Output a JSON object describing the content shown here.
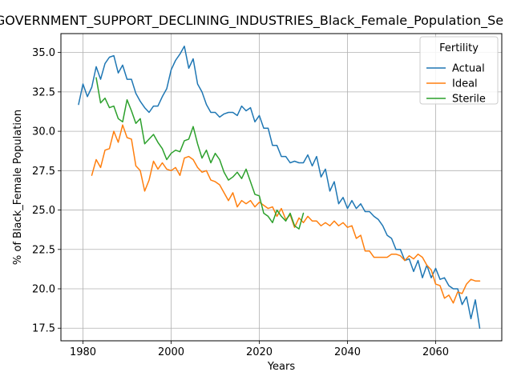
{
  "chart_data": {
    "type": "line",
    "title": "GOVERNMENT_SUPPORT_DECLINING_INDUSTRIES_Black_Female_Population_Se",
    "xlabel": "Years",
    "ylabel": "% of Black_Female Population",
    "xlim": [
      1975,
      2075
    ],
    "ylim": [
      16.7,
      36.2
    ],
    "xticks": [
      1980,
      2000,
      2020,
      2040,
      2060
    ],
    "yticks": [
      17.5,
      20.0,
      22.5,
      25.0,
      27.5,
      30.0,
      32.5,
      35.0
    ],
    "ytick_labels": [
      "17.5",
      "20.0",
      "22.5",
      "25.0",
      "27.5",
      "30.0",
      "32.5",
      "35.0"
    ],
    "grid": true,
    "legend": {
      "title": "Fertility",
      "placement": "upper right"
    },
    "series": [
      {
        "name": "Actual",
        "color": "#1f77b4",
        "x": [
          1979,
          1980,
          1981,
          1982,
          1983,
          1984,
          1985,
          1986,
          1987,
          1988,
          1989,
          1990,
          1991,
          1992,
          1993,
          1994,
          1995,
          1996,
          1997,
          1998,
          1999,
          2000,
          2001,
          2002,
          2003,
          2004,
          2005,
          2006,
          2007,
          2008,
          2009,
          2010,
          2011,
          2012,
          2013,
          2014,
          2015,
          2016,
          2017,
          2018,
          2019,
          2020,
          2021,
          2022,
          2023,
          2024,
          2025,
          2026,
          2027,
          2028,
          2029,
          2030,
          2031,
          2032,
          2033,
          2034,
          2035,
          2036,
          2037,
          2038,
          2039,
          2040,
          2041,
          2042,
          2043,
          2044,
          2045,
          2046,
          2047,
          2048,
          2049,
          2050,
          2051,
          2052,
          2053,
          2054,
          2055,
          2056,
          2057,
          2058,
          2059,
          2060,
          2061,
          2062,
          2063,
          2064,
          2065,
          2066,
          2067,
          2068,
          2069,
          2070
        ],
        "values": [
          31.7,
          33.0,
          32.2,
          32.8,
          34.1,
          33.3,
          34.3,
          34.7,
          34.8,
          33.7,
          34.2,
          33.3,
          33.3,
          32.4,
          31.9,
          31.5,
          31.2,
          31.6,
          31.6,
          32.2,
          32.7,
          33.9,
          34.5,
          34.9,
          35.4,
          34.0,
          34.6,
          33.0,
          32.5,
          31.7,
          31.2,
          31.2,
          30.9,
          31.1,
          31.2,
          31.2,
          31.0,
          31.6,
          31.3,
          31.5,
          30.6,
          31.0,
          30.2,
          30.2,
          29.1,
          29.1,
          28.4,
          28.4,
          28.0,
          28.1,
          28.0,
          28.0,
          28.5,
          27.8,
          28.4,
          27.1,
          27.6,
          26.2,
          26.8,
          25.4,
          25.8,
          25.1,
          25.6,
          25.1,
          25.4,
          24.9,
          24.9,
          24.6,
          24.4,
          24.0,
          23.4,
          23.2,
          22.5,
          22.5,
          21.8,
          21.9,
          21.1,
          21.8,
          20.7,
          21.5,
          20.7,
          21.3,
          20.6,
          20.7,
          20.2,
          20.0,
          20.0,
          19.0,
          19.5,
          18.1,
          19.3,
          17.5
        ]
      },
      {
        "name": "Ideal",
        "color": "#ff7f0e",
        "x": [
          1982,
          1983,
          1984,
          1985,
          1986,
          1987,
          1988,
          1989,
          1990,
          1991,
          1992,
          1993,
          1994,
          1995,
          1996,
          1997,
          1998,
          1999,
          2000,
          2001,
          2002,
          2003,
          2004,
          2005,
          2006,
          2007,
          2008,
          2009,
          2010,
          2011,
          2012,
          2013,
          2014,
          2015,
          2016,
          2017,
          2018,
          2019,
          2020,
          2021,
          2022,
          2023,
          2024,
          2025,
          2026,
          2027,
          2028,
          2029,
          2030,
          2031,
          2032,
          2033,
          2034,
          2035,
          2036,
          2037,
          2038,
          2039,
          2040,
          2041,
          2042,
          2043,
          2044,
          2045,
          2046,
          2047,
          2048,
          2049,
          2050,
          2051,
          2052,
          2053,
          2054,
          2055,
          2056,
          2057,
          2058,
          2059,
          2060,
          2061,
          2062,
          2063,
          2064,
          2065,
          2066,
          2067,
          2068,
          2069,
          2070
        ],
        "values": [
          27.2,
          28.2,
          27.7,
          28.8,
          28.9,
          30.0,
          29.3,
          30.4,
          29.6,
          29.5,
          27.8,
          27.5,
          26.2,
          26.9,
          28.1,
          27.6,
          28.0,
          27.6,
          27.5,
          27.7,
          27.2,
          28.3,
          28.4,
          28.2,
          27.7,
          27.4,
          27.5,
          26.9,
          26.8,
          26.6,
          26.1,
          25.6,
          26.1,
          25.2,
          25.6,
          25.4,
          25.6,
          25.2,
          25.5,
          25.3,
          25.1,
          25.2,
          24.6,
          25.1,
          24.4,
          24.7,
          23.9,
          24.5,
          24.2,
          24.6,
          24.3,
          24.3,
          24.0,
          24.2,
          24.0,
          24.3,
          24.0,
          24.2,
          23.9,
          24.0,
          23.2,
          23.4,
          22.4,
          22.4,
          22.0,
          22.0,
          22.0,
          22.0,
          22.2,
          22.2,
          22.1,
          21.8,
          22.1,
          21.9,
          22.2,
          22.0,
          21.5,
          21.2,
          20.3,
          20.2,
          19.4,
          19.6,
          19.1,
          19.8,
          19.7,
          20.3,
          20.6,
          20.5,
          20.5
        ]
      },
      {
        "name": "Sterile",
        "color": "#2ca02c",
        "x": [
          1983,
          1984,
          1985,
          1986,
          1987,
          1988,
          1989,
          1990,
          1991,
          1992,
          1993,
          1994,
          1995,
          1996,
          1997,
          1998,
          1999,
          2000,
          2001,
          2002,
          2003,
          2004,
          2005,
          2006,
          2007,
          2008,
          2009,
          2010,
          2011,
          2012,
          2013,
          2014,
          2015,
          2016,
          2017,
          2018,
          2019,
          2020,
          2021,
          2022,
          2023,
          2024,
          2025,
          2026,
          2027,
          2028,
          2029,
          2030
        ],
        "values": [
          33.4,
          31.8,
          32.1,
          31.5,
          31.6,
          30.8,
          30.6,
          32.0,
          31.3,
          30.5,
          30.8,
          29.2,
          29.5,
          29.8,
          29.3,
          28.9,
          28.2,
          28.6,
          28.8,
          28.7,
          29.4,
          29.5,
          30.3,
          29.2,
          28.3,
          28.8,
          28.0,
          28.6,
          28.2,
          27.4,
          26.9,
          27.1,
          27.4,
          27.0,
          27.6,
          26.8,
          26.0,
          25.9,
          24.8,
          24.6,
          24.2,
          25.0,
          24.6,
          24.3,
          24.8,
          24.0,
          23.8,
          24.8
        ]
      }
    ]
  }
}
